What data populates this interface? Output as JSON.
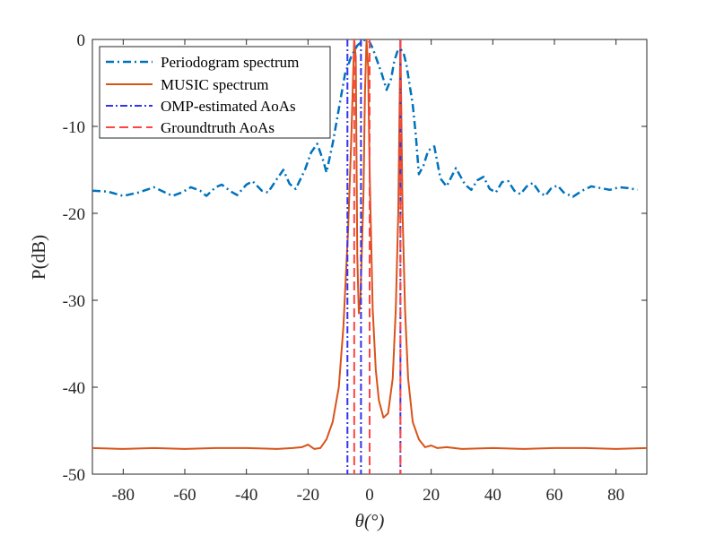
{
  "chart_data": {
    "type": "line",
    "xlabel": "θ(°)",
    "ylabel": "P(dB)",
    "xlim": [
      -90,
      90
    ],
    "ylim": [
      -50,
      0
    ],
    "x_ticks": [
      -80,
      -60,
      -40,
      -20,
      0,
      20,
      40,
      60,
      80
    ],
    "y_ticks": [
      0,
      -10,
      -20,
      -30,
      -40,
      -50
    ],
    "x_tick_labels": [
      "-80",
      "-60",
      "-40",
      "-20",
      "0",
      "20",
      "40",
      "60",
      "80"
    ],
    "y_tick_labels": [
      "0",
      "-10",
      "-20",
      "-30",
      "-40",
      "-50"
    ],
    "legend_position": "top-left",
    "series": [
      {
        "name": "Periodogram spectrum",
        "style": "dash-dot",
        "color": "#0072BD",
        "points": [
          [
            -90,
            -17.4
          ],
          [
            -85,
            -17.5
          ],
          [
            -80,
            -18.0
          ],
          [
            -75,
            -17.6
          ],
          [
            -70,
            -17.0
          ],
          [
            -67,
            -17.5
          ],
          [
            -64,
            -18.0
          ],
          [
            -61,
            -17.6
          ],
          [
            -58,
            -17.0
          ],
          [
            -55,
            -17.4
          ],
          [
            -53,
            -18.0
          ],
          [
            -50,
            -17.0
          ],
          [
            -48,
            -16.7
          ],
          [
            -45,
            -17.5
          ],
          [
            -43,
            -17.9
          ],
          [
            -40,
            -16.7
          ],
          [
            -38,
            -16.3
          ],
          [
            -35,
            -17.4
          ],
          [
            -33,
            -17.6
          ],
          [
            -30,
            -16.0
          ],
          [
            -28,
            -15.0
          ],
          [
            -26,
            -16.6
          ],
          [
            -24,
            -17.2
          ],
          [
            -21,
            -15.0
          ],
          [
            -19,
            -13.0
          ],
          [
            -17,
            -12.0
          ],
          [
            -15,
            -14.0
          ],
          [
            -14,
            -15.3
          ],
          [
            -12,
            -12.0
          ],
          [
            -10,
            -8.0
          ],
          [
            -8,
            -4.0
          ],
          [
            -6,
            -2.0
          ],
          [
            -4,
            -0.7
          ],
          [
            -2,
            -0.1
          ],
          [
            -1,
            -0.05
          ],
          [
            0,
            -0.3
          ],
          [
            1,
            -1.0
          ],
          [
            2,
            -2.0
          ],
          [
            4,
            -4.0
          ],
          [
            5.5,
            -5.8
          ],
          [
            7,
            -4.5
          ],
          [
            8,
            -2.5
          ],
          [
            9,
            -1.4
          ],
          [
            10,
            -1.1
          ],
          [
            11,
            -1.5
          ],
          [
            12,
            -3.0
          ],
          [
            14,
            -7.5
          ],
          [
            15,
            -11.0
          ],
          [
            16,
            -15.5
          ],
          [
            17.5,
            -14.5
          ],
          [
            19,
            -12.8
          ],
          [
            21,
            -12.3
          ],
          [
            23,
            -16.0
          ],
          [
            25,
            -16.9
          ],
          [
            28,
            -14.8
          ],
          [
            31,
            -16.7
          ],
          [
            33,
            -17.3
          ],
          [
            35,
            -16.2
          ],
          [
            37,
            -15.8
          ],
          [
            39,
            -17.2
          ],
          [
            41,
            -17.6
          ],
          [
            43,
            -16.4
          ],
          [
            45,
            -16.3
          ],
          [
            47,
            -17.4
          ],
          [
            49,
            -17.8
          ],
          [
            51,
            -16.9
          ],
          [
            53,
            -16.5
          ],
          [
            55,
            -17.5
          ],
          [
            57,
            -18.0
          ],
          [
            59,
            -17.1
          ],
          [
            61,
            -16.8
          ],
          [
            63,
            -17.6
          ],
          [
            66,
            -18.1
          ],
          [
            69,
            -17.4
          ],
          [
            72,
            -16.9
          ],
          [
            75,
            -17.1
          ],
          [
            78,
            -17.3
          ],
          [
            81,
            -17.0
          ],
          [
            84,
            -17.1
          ],
          [
            87,
            -17.3
          ]
        ]
      },
      {
        "name": "MUSIC spectrum",
        "style": "solid",
        "color": "#D95319",
        "points": [
          [
            -90,
            -47.0
          ],
          [
            -80,
            -47.1
          ],
          [
            -70,
            -47.0
          ],
          [
            -60,
            -47.1
          ],
          [
            -50,
            -47.0
          ],
          [
            -40,
            -47.0
          ],
          [
            -30,
            -47.1
          ],
          [
            -25,
            -47.0
          ],
          [
            -22,
            -46.9
          ],
          [
            -20,
            -46.6
          ],
          [
            -18,
            -47.1
          ],
          [
            -16,
            -47.0
          ],
          [
            -14,
            -46.0
          ],
          [
            -12,
            -44.0
          ],
          [
            -10,
            -40.0
          ],
          [
            -8.5,
            -33.0
          ],
          [
            -7,
            -22.0
          ],
          [
            -6,
            -12.0
          ],
          [
            -5,
            0.0
          ],
          [
            -4.5,
            -2.0
          ],
          [
            -4,
            -25.0
          ],
          [
            -3.5,
            -31.5
          ],
          [
            -3,
            -30.0
          ],
          [
            -2,
            -18.0
          ],
          [
            -1.5,
            -6.0
          ],
          [
            -1,
            0.0
          ],
          [
            -0.5,
            -3.0
          ],
          [
            0,
            -15.0
          ],
          [
            1,
            -31.0
          ],
          [
            2,
            -38.0
          ],
          [
            3,
            -41.5
          ],
          [
            4.5,
            -43.5
          ],
          [
            6,
            -43.0
          ],
          [
            7.5,
            -39.0
          ],
          [
            8.5,
            -31.0
          ],
          [
            9.3,
            -20.0
          ],
          [
            10,
            0.0
          ],
          [
            10.7,
            -20.0
          ],
          [
            11.5,
            -31.0
          ],
          [
            12.5,
            -39.0
          ],
          [
            14,
            -44.0
          ],
          [
            16,
            -46.0
          ],
          [
            18,
            -46.9
          ],
          [
            20,
            -46.7
          ],
          [
            22,
            -47.0
          ],
          [
            25,
            -46.9
          ],
          [
            30,
            -47.1
          ],
          [
            40,
            -47.0
          ],
          [
            50,
            -47.1
          ],
          [
            60,
            -47.0
          ],
          [
            70,
            -47.0
          ],
          [
            80,
            -47.1
          ],
          [
            90,
            -47.0
          ]
        ]
      },
      {
        "name": "OMP-estimated AoAs",
        "style": "dash-dot-vertical",
        "color": "#3333EE",
        "x": [
          -7.2,
          -2.8,
          10.0
        ]
      },
      {
        "name": "Groundtruth AoAs",
        "style": "dashed-vertical",
        "color": "#FF4444",
        "x": [
          -5.0,
          0.0,
          10.0
        ]
      }
    ]
  }
}
